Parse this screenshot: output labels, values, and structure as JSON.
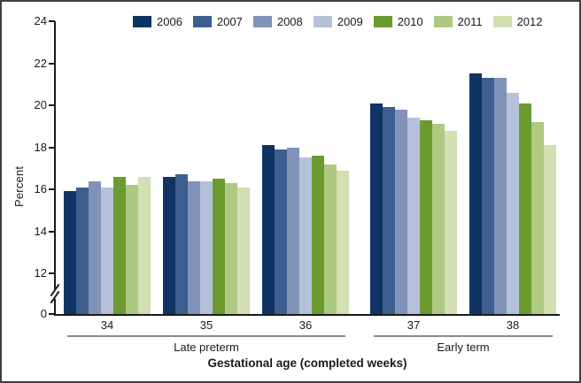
{
  "figure": {
    "background": "#ffffff",
    "border_color": "#3f3f3f",
    "axis_color": "#1a1a1a",
    "group_line_color": "#8c8c8c"
  },
  "chart_data": {
    "type": "bar",
    "title": "",
    "xlabel": "Gestational age (completed weeks)",
    "ylabel": "Percent",
    "unit": "percent",
    "categories": [
      "34",
      "35",
      "36",
      "37",
      "38"
    ],
    "category_groups": [
      {
        "label": "Late preterm",
        "span": [
          0,
          2
        ]
      },
      {
        "label": "Early term",
        "span": [
          3,
          4
        ]
      }
    ],
    "series": [
      {
        "name": "2006",
        "color": "#0f3464",
        "values": [
          15.9,
          16.6,
          18.1,
          20.1,
          21.5
        ]
      },
      {
        "name": "2007",
        "color": "#3d5e8e",
        "values": [
          16.1,
          16.7,
          17.9,
          19.9,
          21.3
        ]
      },
      {
        "name": "2008",
        "color": "#8293ba",
        "values": [
          16.4,
          16.4,
          18.0,
          19.8,
          21.3
        ]
      },
      {
        "name": "2009",
        "color": "#b6c0d9",
        "values": [
          16.1,
          16.4,
          17.5,
          19.4,
          20.6
        ]
      },
      {
        "name": "2010",
        "color": "#6b9b30",
        "values": [
          16.6,
          16.5,
          17.6,
          19.3,
          20.1
        ]
      },
      {
        "name": "2011",
        "color": "#adc982",
        "values": [
          16.2,
          16.3,
          17.2,
          19.1,
          19.2
        ]
      },
      {
        "name": "2012",
        "color": "#d2dfb2",
        "values": [
          16.6,
          16.1,
          16.9,
          18.8,
          18.1
        ]
      }
    ],
    "y_axis": {
      "ticks": [
        24,
        22,
        20,
        18,
        16,
        14,
        12,
        0
      ],
      "axis_break_between": [
        0,
        12
      ],
      "ylim": [
        0,
        24
      ],
      "grid": false
    },
    "legend_position": "top"
  }
}
